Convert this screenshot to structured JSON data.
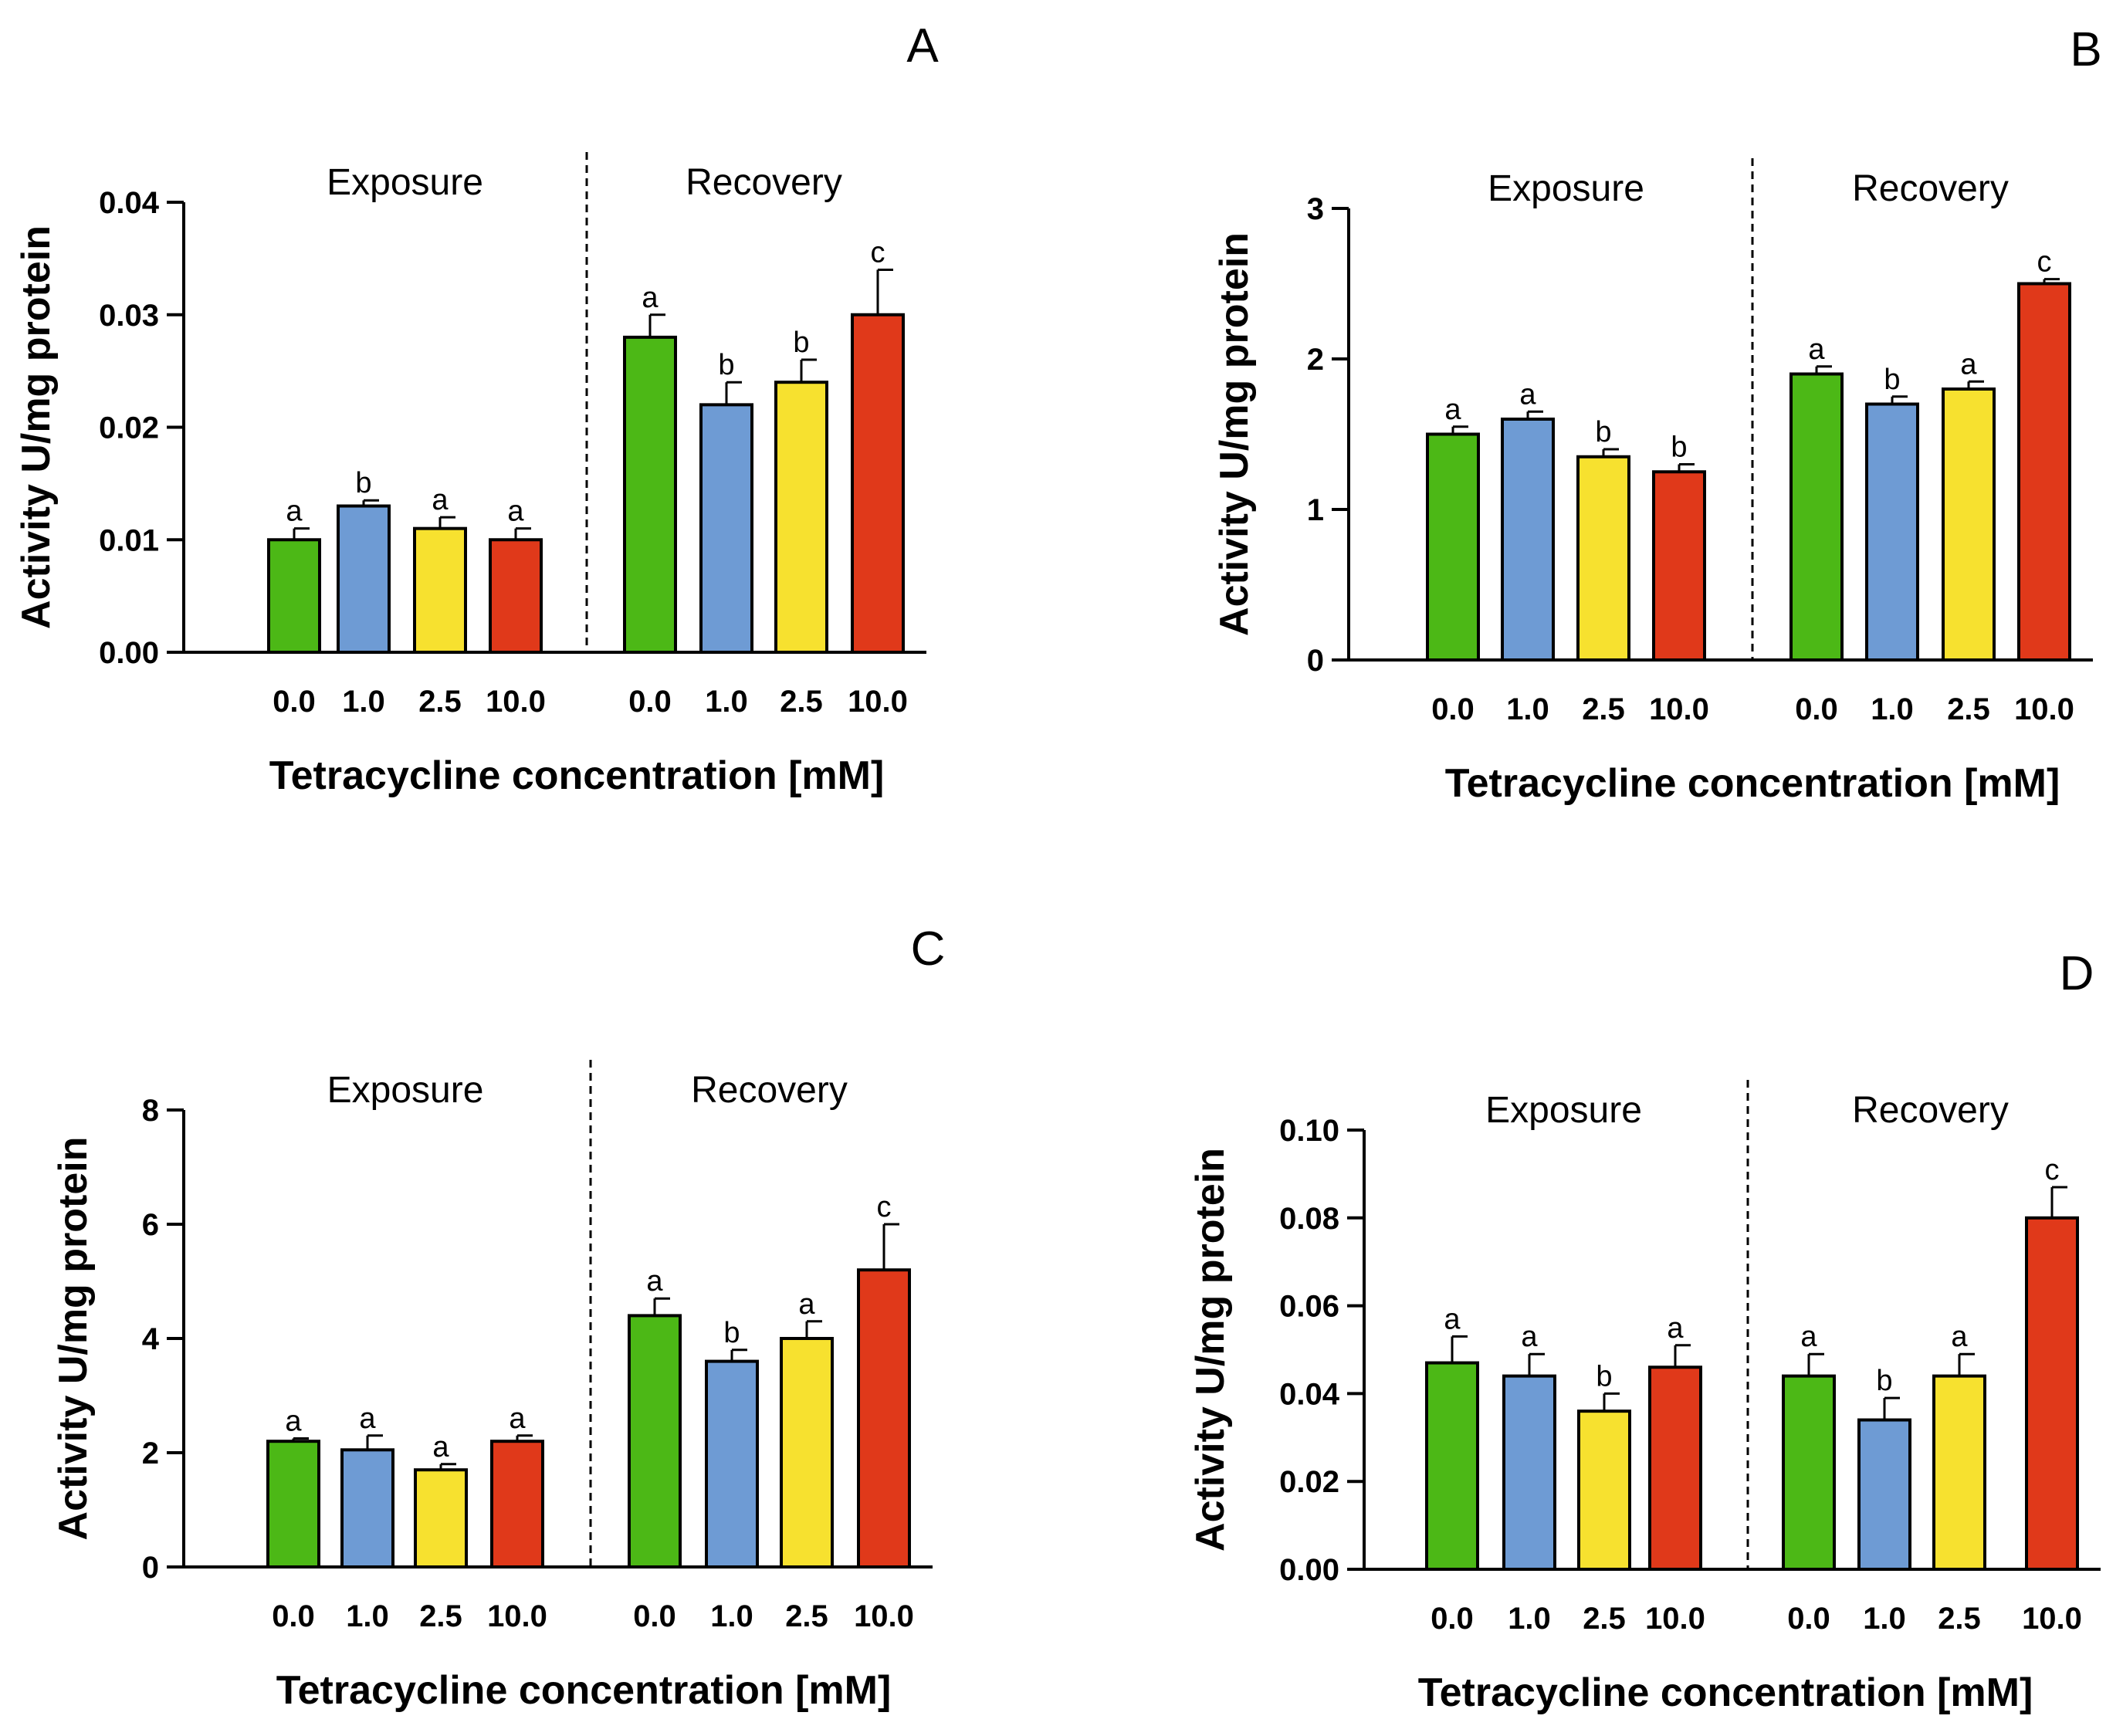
{
  "chart_data": [
    {
      "panel": "A",
      "type": "bar",
      "ylabel": "Activity U/mg protein",
      "xlabel": "Tetracycline concentration [mM]",
      "groups": [
        "Exposure",
        "Recovery"
      ],
      "categories": [
        "0.0",
        "1.0",
        "2.5",
        "10.0"
      ],
      "colors": [
        "#4cb816",
        "#6e9bd4",
        "#f7e12f",
        "#e0391a"
      ],
      "ylim": [
        0,
        0.04
      ],
      "yticks": [
        "0.00",
        "0.01",
        "0.02",
        "0.03",
        "0.04"
      ],
      "series": [
        {
          "name": "Exposure",
          "values": [
            0.01,
            0.013,
            0.011,
            0.01
          ],
          "errors": [
            0.001,
            0.0005,
            0.001,
            0.001
          ],
          "labels": [
            "a",
            "b",
            "a",
            "a"
          ]
        },
        {
          "name": "Recovery",
          "values": [
            0.028,
            0.022,
            0.024,
            0.03
          ],
          "errors": [
            0.002,
            0.002,
            0.002,
            0.004
          ],
          "labels": [
            "a",
            "b",
            "b",
            "c"
          ]
        }
      ]
    },
    {
      "panel": "B",
      "type": "bar",
      "ylabel": "Activity U/mg protein",
      "xlabel": "Tetracycline concentration [mM]",
      "groups": [
        "Exposure",
        "Recovery"
      ],
      "categories": [
        "0.0",
        "1.0",
        "2.5",
        "10.0"
      ],
      "colors": [
        "#4cb816",
        "#6e9bd4",
        "#f7e12f",
        "#e0391a"
      ],
      "ylim": [
        0,
        3
      ],
      "yticks": [
        "0",
        "1",
        "2",
        "3"
      ],
      "series": [
        {
          "name": "Exposure",
          "values": [
            1.5,
            1.6,
            1.35,
            1.25
          ],
          "errors": [
            0.05,
            0.05,
            0.05,
            0.05
          ],
          "labels": [
            "a",
            "a",
            "b",
            "b"
          ]
        },
        {
          "name": "Recovery",
          "values": [
            1.9,
            1.7,
            1.8,
            2.5
          ],
          "errors": [
            0.05,
            0.05,
            0.05,
            0.03
          ],
          "labels": [
            "a",
            "b",
            "a",
            "c"
          ]
        }
      ]
    },
    {
      "panel": "C",
      "type": "bar",
      "ylabel": "Activity U/mg protein",
      "xlabel": "Tetracycline concentration [mM]",
      "groups": [
        "Exposure",
        "Recovery"
      ],
      "categories": [
        "0.0",
        "1.0",
        "2.5",
        "10.0"
      ],
      "colors": [
        "#4cb816",
        "#6e9bd4",
        "#f7e12f",
        "#e0391a"
      ],
      "ylim": [
        0,
        8
      ],
      "yticks": [
        "0",
        "2",
        "4",
        "6",
        "8"
      ],
      "series": [
        {
          "name": "Exposure",
          "values": [
            2.2,
            2.05,
            1.7,
            2.2
          ],
          "errors": [
            0.05,
            0.25,
            0.1,
            0.1
          ],
          "labels": [
            "a",
            "a",
            "a",
            "a"
          ]
        },
        {
          "name": "Recovery",
          "values": [
            4.4,
            3.6,
            4.0,
            5.2
          ],
          "errors": [
            0.3,
            0.2,
            0.3,
            0.8
          ],
          "labels": [
            "a",
            "b",
            "a",
            "c"
          ]
        }
      ]
    },
    {
      "panel": "D",
      "type": "bar",
      "ylabel": "Activity U/mg protein",
      "xlabel": "Tetracycline concentration [mM]",
      "groups": [
        "Exposure",
        "Recovery"
      ],
      "categories": [
        "0.0",
        "1.0",
        "2.5",
        "10.0"
      ],
      "colors": [
        "#4cb816",
        "#6e9bd4",
        "#f7e12f",
        "#e0391a"
      ],
      "ylim": [
        0,
        0.1
      ],
      "yticks": [
        "0.00",
        "0.02",
        "0.04",
        "0.06",
        "0.08",
        "0.10"
      ],
      "series": [
        {
          "name": "Exposure",
          "values": [
            0.047,
            0.044,
            0.036,
            0.046
          ],
          "errors": [
            0.006,
            0.005,
            0.004,
            0.005
          ],
          "labels": [
            "a",
            "a",
            "b",
            "a"
          ]
        },
        {
          "name": "Recovery",
          "values": [
            0.044,
            0.034,
            0.044,
            0.08
          ],
          "errors": [
            0.005,
            0.005,
            0.005,
            0.007
          ],
          "labels": [
            "a",
            "b",
            "a",
            "c"
          ]
        }
      ]
    }
  ]
}
